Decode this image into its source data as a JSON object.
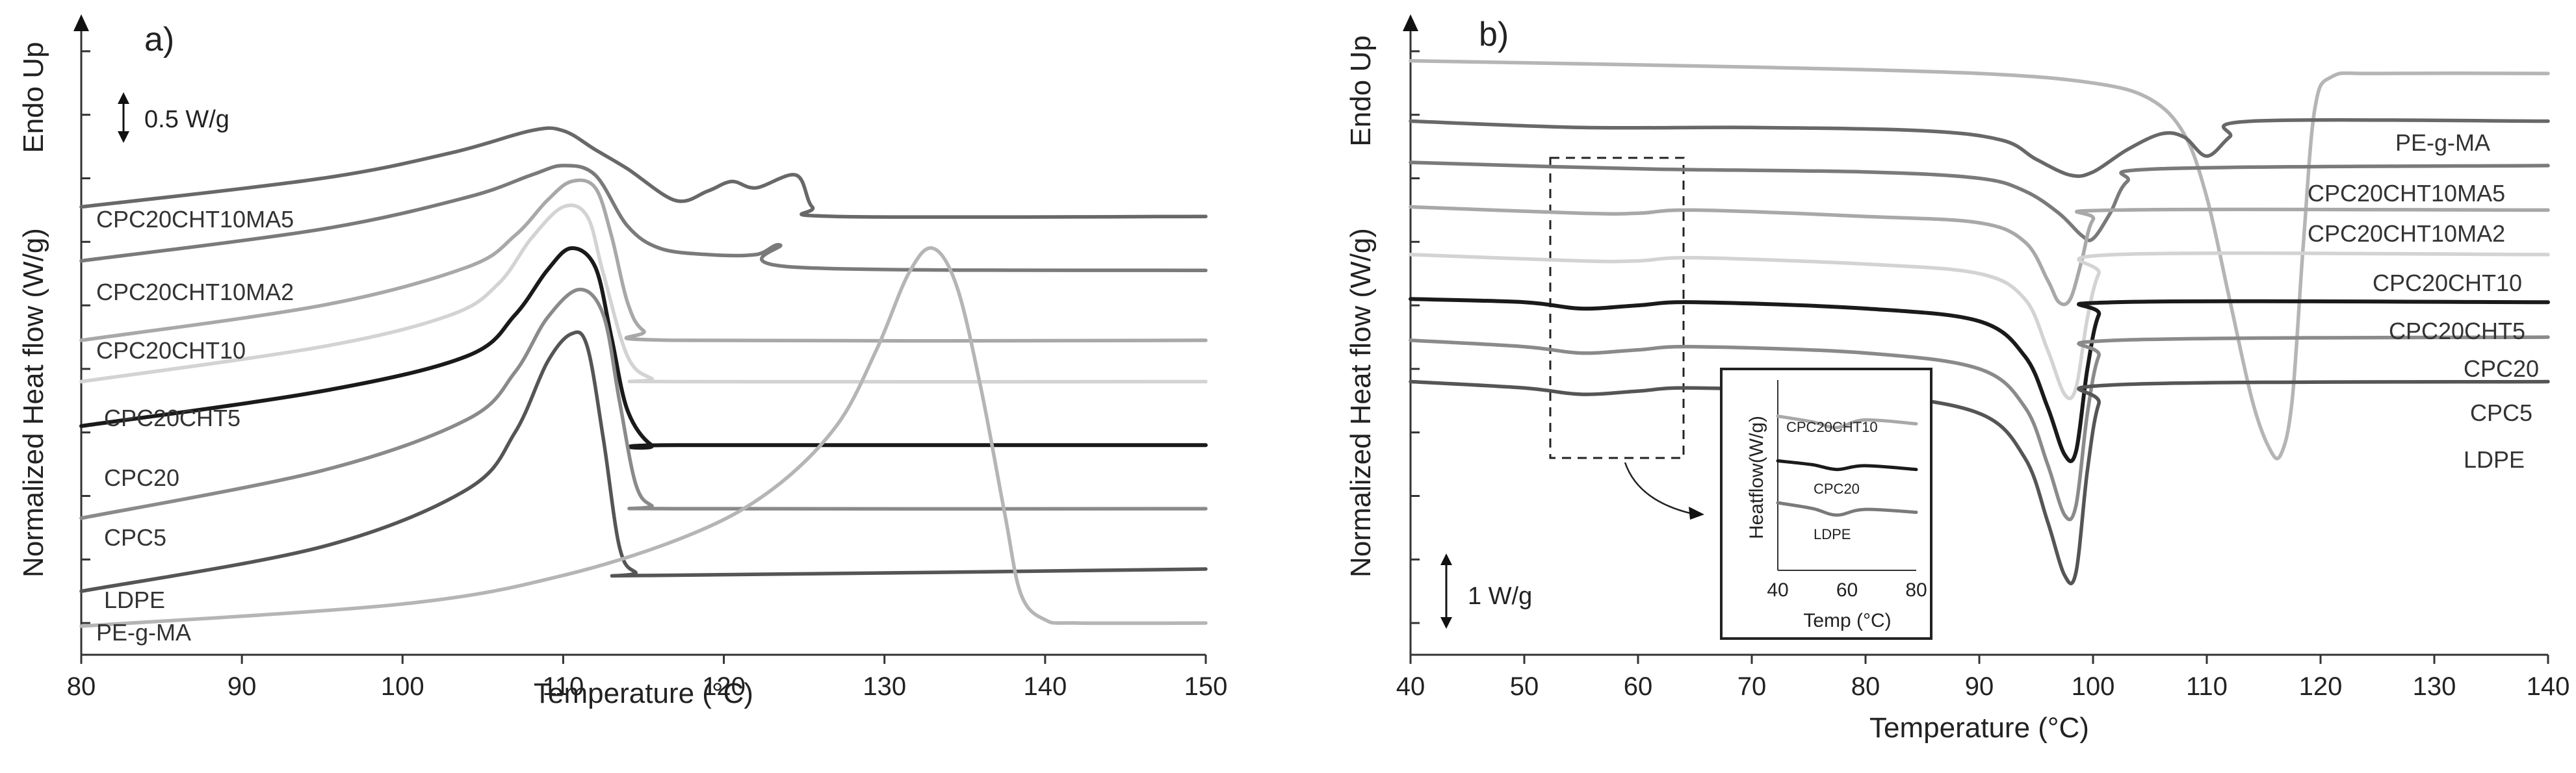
{
  "chart_data": [
    {
      "panel": "a)",
      "type": "line",
      "xlabel": "Temperature (°C)",
      "ylabel": "Normalized Heat flow (W/g)",
      "endo_label": "Endo Up",
      "scale_bar": "0.5 W/g",
      "scale_bar_value": 0.5,
      "xlim": [
        80,
        150
      ],
      "ylim": [
        0,
        10
      ],
      "xticks": [
        80,
        90,
        100,
        110,
        120,
        130,
        140,
        150
      ],
      "series": [
        {
          "name": "CPC20CHT10MA5",
          "color": "#686868",
          "points": [
            [
              80,
              7.05
            ],
            [
              95,
              7.5
            ],
            [
              103,
              7.9
            ],
            [
              108,
              8.25
            ],
            [
              110,
              8.25
            ],
            [
              112,
              7.95
            ],
            [
              114,
              7.65
            ],
            [
              117,
              7.15
            ],
            [
              119,
              7.3
            ],
            [
              120.5,
              7.45
            ],
            [
              122,
              7.35
            ],
            [
              124.5,
              7.55
            ],
            [
              125.5,
              7.05
            ],
            [
              127,
              6.9
            ],
            [
              150,
              6.9
            ]
          ]
        },
        {
          "name": "CPC20CHT10MA2",
          "color": "#7a7a7a",
          "points": [
            [
              80,
              6.2
            ],
            [
              95,
              6.7
            ],
            [
              104,
              7.2
            ],
            [
              108,
              7.55
            ],
            [
              110,
              7.7
            ],
            [
              112,
              7.55
            ],
            [
              114,
              6.75
            ],
            [
              116,
              6.4
            ],
            [
              119,
              6.3
            ],
            [
              122,
              6.3
            ],
            [
              123.5,
              6.45
            ],
            [
              124.5,
              6.1
            ],
            [
              150,
              6.05
            ]
          ]
        },
        {
          "name": "CPC20CHT10",
          "color": "#a8a8a8",
          "points": [
            [
              80,
              4.95
            ],
            [
              95,
              5.5
            ],
            [
              104,
              6.1
            ],
            [
              107,
              6.6
            ],
            [
              109,
              7.15
            ],
            [
              110.5,
              7.45
            ],
            [
              112,
              7.35
            ],
            [
              113,
              6.6
            ],
            [
              114,
              5.55
            ],
            [
              115,
              5.1
            ],
            [
              117,
              4.95
            ],
            [
              150,
              4.95
            ]
          ]
        },
        {
          "name": "CPC20CHT5",
          "color": "#d3d3d3",
          "points": [
            [
              80,
              4.3
            ],
            [
              95,
              4.85
            ],
            [
              103,
              5.35
            ],
            [
              106,
              5.85
            ],
            [
              108,
              6.55
            ],
            [
              110,
              7.05
            ],
            [
              111.5,
              6.9
            ],
            [
              112.5,
              6.0
            ],
            [
              114,
              4.7
            ],
            [
              115.5,
              4.35
            ],
            [
              117,
              4.3
            ],
            [
              150,
              4.3
            ]
          ]
        },
        {
          "name": "CPC20",
          "color": "#1a1a1a",
          "points": [
            [
              80,
              3.6
            ],
            [
              95,
              4.15
            ],
            [
              104,
              4.7
            ],
            [
              107,
              5.35
            ],
            [
              109,
              6.05
            ],
            [
              110.5,
              6.4
            ],
            [
              112,
              6.1
            ],
            [
              113,
              5.0
            ],
            [
              114,
              3.85
            ],
            [
              115.5,
              3.3
            ],
            [
              117,
              3.3
            ],
            [
              150,
              3.3
            ]
          ]
        },
        {
          "name": "CPC5",
          "color": "#8a8a8a",
          "points": [
            [
              80,
              2.15
            ],
            [
              95,
              2.9
            ],
            [
              104,
              3.7
            ],
            [
              107,
              4.45
            ],
            [
              109,
              5.3
            ],
            [
              111,
              5.75
            ],
            [
              112.5,
              5.35
            ],
            [
              113.5,
              4.0
            ],
            [
              114.5,
              2.7
            ],
            [
              115.5,
              2.35
            ],
            [
              117,
              2.3
            ],
            [
              150,
              2.3
            ]
          ]
        },
        {
          "name": "LDPE",
          "color": "#555555",
          "points": [
            [
              80,
              1.0
            ],
            [
              95,
              1.7
            ],
            [
              104,
              2.6
            ],
            [
              107,
              3.5
            ],
            [
              109,
              4.6
            ],
            [
              110.5,
              5.05
            ],
            [
              111.5,
              4.85
            ],
            [
              112.5,
              3.4
            ],
            [
              113.5,
              1.7
            ],
            [
              114.5,
              1.3
            ],
            [
              116,
              1.25
            ],
            [
              150,
              1.35
            ]
          ]
        },
        {
          "name": "PE-g-MA",
          "color": "#b5b5b5",
          "points": [
            [
              80,
              0.45
            ],
            [
              100,
              0.8
            ],
            [
              110,
              1.25
            ],
            [
              118,
              1.9
            ],
            [
              123,
              2.6
            ],
            [
              127,
              3.6
            ],
            [
              129.5,
              4.8
            ],
            [
              131.5,
              6.0
            ],
            [
              133,
              6.4
            ],
            [
              134.5,
              5.8
            ],
            [
              136,
              4.2
            ],
            [
              137.5,
              2.2
            ],
            [
              138.5,
              0.95
            ],
            [
              140,
              0.55
            ],
            [
              142,
              0.5
            ],
            [
              150,
              0.5
            ]
          ]
        }
      ]
    },
    {
      "panel": "b)",
      "type": "line",
      "xlabel": "Temperature (°C)",
      "ylabel": "Normalized Heat flow (W/g)",
      "endo_label": "Endo Up",
      "scale_bar": "1 W/g",
      "scale_bar_value": 1,
      "xlim": [
        40,
        140
      ],
      "ylim": [
        0,
        10
      ],
      "xticks": [
        40,
        50,
        60,
        70,
        80,
        90,
        100,
        110,
        120,
        130,
        140
      ],
      "series": [
        {
          "name": "PE-g-MA",
          "color": "#b5b5b5",
          "points": [
            [
              40,
              9.35
            ],
            [
              70,
              9.25
            ],
            [
              90,
              9.15
            ],
            [
              100,
              9.0
            ],
            [
              105,
              8.75
            ],
            [
              108,
              8.2
            ],
            [
              110,
              7.2
            ],
            [
              112,
              5.6
            ],
            [
              114,
              4.0
            ],
            [
              115.5,
              3.25
            ],
            [
              116.5,
              3.15
            ],
            [
              117.5,
              4.0
            ],
            [
              118.5,
              6.5
            ],
            [
              119.5,
              8.6
            ],
            [
              121,
              9.1
            ],
            [
              125,
              9.15
            ],
            [
              140,
              9.15
            ]
          ]
        },
        {
          "name": "CPC20CHT10MA5",
          "color": "#686868",
          "points": [
            [
              40,
              8.4
            ],
            [
              55,
              8.3
            ],
            [
              70,
              8.3
            ],
            [
              85,
              8.25
            ],
            [
              92,
              8.1
            ],
            [
              95,
              7.8
            ],
            [
              98,
              7.55
            ],
            [
              100,
              7.6
            ],
            [
              103,
              7.95
            ],
            [
              106,
              8.2
            ],
            [
              108,
              8.15
            ],
            [
              110,
              7.85
            ],
            [
              112,
              8.15
            ],
            [
              114,
              8.4
            ],
            [
              140,
              8.4
            ]
          ]
        },
        {
          "name": "CPC20CHT10MA2",
          "color": "#7a7a7a",
          "points": [
            [
              40,
              7.75
            ],
            [
              60,
              7.65
            ],
            [
              80,
              7.6
            ],
            [
              90,
              7.5
            ],
            [
              94,
              7.3
            ],
            [
              97,
              6.95
            ],
            [
              99,
              6.6
            ],
            [
              100,
              6.55
            ],
            [
              101.5,
              6.95
            ],
            [
              103,
              7.45
            ],
            [
              106,
              7.65
            ],
            [
              140,
              7.7
            ]
          ]
        },
        {
          "name": "CPC20CHT10",
          "color": "#a8a8a8",
          "points": [
            [
              40,
              7.05
            ],
            [
              55,
              6.95
            ],
            [
              60,
              6.95
            ],
            [
              65,
              7.0
            ],
            [
              80,
              6.9
            ],
            [
              90,
              6.8
            ],
            [
              94,
              6.5
            ],
            [
              96,
              5.9
            ],
            [
              97,
              5.55
            ],
            [
              98,
              5.6
            ],
            [
              99,
              6.2
            ],
            [
              100,
              6.85
            ],
            [
              102,
              7.0
            ],
            [
              140,
              7.0
            ]
          ]
        },
        {
          "name": "CPC20CHT5",
          "color": "#d3d3d3",
          "points": [
            [
              40,
              6.3
            ],
            [
              55,
              6.2
            ],
            [
              60,
              6.2
            ],
            [
              65,
              6.25
            ],
            [
              80,
              6.15
            ],
            [
              90,
              6.0
            ],
            [
              94,
              5.6
            ],
            [
              96,
              4.8
            ],
            [
              97.5,
              4.1
            ],
            [
              98.5,
              4.2
            ],
            [
              99.5,
              5.3
            ],
            [
              100.5,
              6.0
            ],
            [
              102,
              6.3
            ],
            [
              140,
              6.3
            ]
          ]
        },
        {
          "name": "CPC20",
          "color": "#1a1a1a",
          "points": [
            [
              40,
              5.6
            ],
            [
              50,
              5.55
            ],
            [
              55,
              5.45
            ],
            [
              60,
              5.5
            ],
            [
              65,
              5.55
            ],
            [
              80,
              5.45
            ],
            [
              90,
              5.25
            ],
            [
              94,
              4.7
            ],
            [
              96,
              3.9
            ],
            [
              97.5,
              3.15
            ],
            [
              98.5,
              3.2
            ],
            [
              99.5,
              4.5
            ],
            [
              100.5,
              5.35
            ],
            [
              102,
              5.55
            ],
            [
              140,
              5.55
            ]
          ]
        },
        {
          "name": "CPC5",
          "color": "#8a8a8a",
          "points": [
            [
              40,
              4.95
            ],
            [
              50,
              4.85
            ],
            [
              55,
              4.75
            ],
            [
              60,
              4.8
            ],
            [
              65,
              4.85
            ],
            [
              80,
              4.75
            ],
            [
              90,
              4.5
            ],
            [
              94,
              3.9
            ],
            [
              96,
              3.0
            ],
            [
              97.5,
              2.2
            ],
            [
              98.5,
              2.35
            ],
            [
              99.5,
              3.8
            ],
            [
              100.5,
              4.7
            ],
            [
              102,
              4.95
            ],
            [
              140,
              5.0
            ]
          ]
        },
        {
          "name": "LDPE",
          "color": "#555555",
          "points": [
            [
              40,
              4.3
            ],
            [
              50,
              4.2
            ],
            [
              55,
              4.1
            ],
            [
              60,
              4.15
            ],
            [
              65,
              4.2
            ],
            [
              80,
              4.1
            ],
            [
              90,
              3.8
            ],
            [
              94,
              3.1
            ],
            [
              96,
              2.1
            ],
            [
              97.5,
              1.25
            ],
            [
              98.5,
              1.3
            ],
            [
              99.5,
              2.9
            ],
            [
              100.5,
              3.95
            ],
            [
              102,
              4.25
            ],
            [
              140,
              4.3
            ]
          ]
        }
      ],
      "inset": {
        "xlabel": "Temp (°C)",
        "ylabel": "Heatflow(W/g)",
        "xticks": [
          40,
          60,
          80
        ],
        "xlim": [
          40,
          80
        ],
        "ylim": [
          0,
          10
        ],
        "series": [
          {
            "name": "CPC20CHT10",
            "color": "#a8a8a8",
            "points": [
              [
                40,
                8.1
              ],
              [
                50,
                7.8
              ],
              [
                57,
                7.5
              ],
              [
                65,
                7.9
              ],
              [
                80,
                7.7
              ]
            ]
          },
          {
            "name": "CPC20",
            "color": "#1a1a1a",
            "points": [
              [
                40,
                5.75
              ],
              [
                50,
                5.55
              ],
              [
                57,
                5.3
              ],
              [
                65,
                5.5
              ],
              [
                80,
                5.3
              ]
            ]
          },
          {
            "name": "LDPE",
            "color": "#7a7a7a",
            "points": [
              [
                40,
                3.55
              ],
              [
                50,
                3.25
              ],
              [
                57,
                2.9
              ],
              [
                65,
                3.2
              ],
              [
                80,
                3.05
              ]
            ]
          }
        ]
      }
    }
  ]
}
